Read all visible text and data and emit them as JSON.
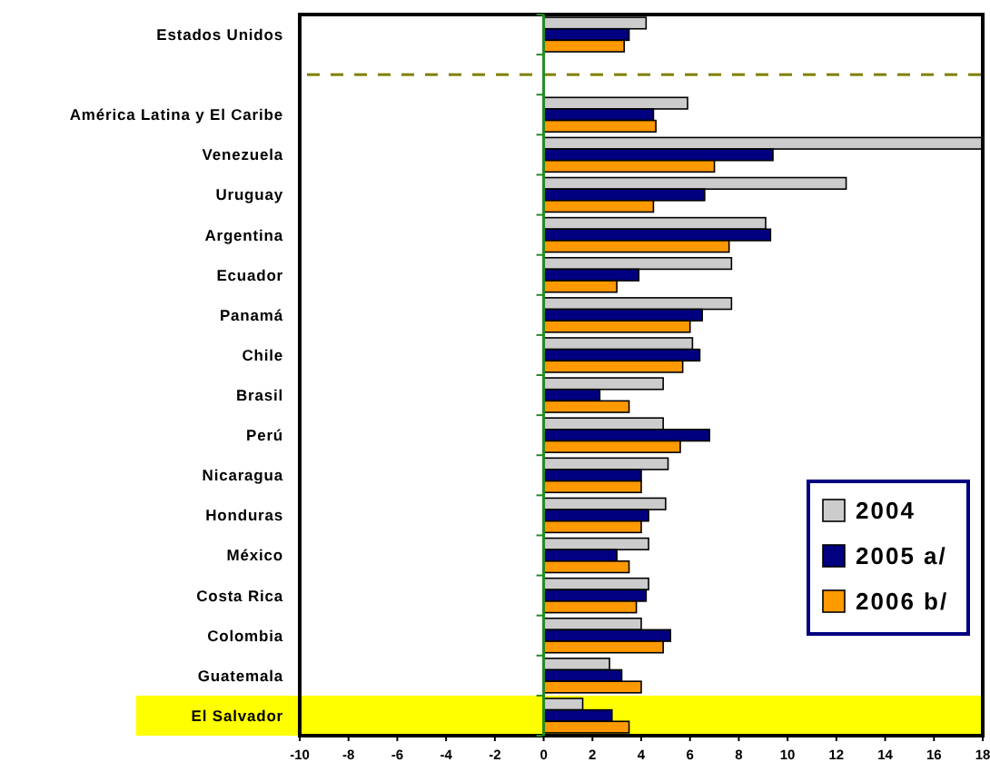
{
  "chart_data": {
    "type": "bar",
    "orientation": "horizontal",
    "categories": [
      "Estados Unidos",
      null,
      "América Latina y El Caribe",
      "Venezuela",
      "Uruguay",
      "Argentina",
      "Ecuador",
      "Panamá",
      "Chile",
      "Brasil",
      "Perú",
      "Nicaragua",
      "Honduras",
      "México",
      "Costa Rica",
      "Colombia",
      "Guatemala",
      "El Salvador"
    ],
    "series": [
      {
        "name": "2004",
        "color": "#cccccc",
        "values": [
          4.2,
          null,
          5.9,
          18.0,
          12.4,
          9.1,
          7.7,
          7.7,
          6.1,
          4.9,
          4.9,
          5.1,
          5.0,
          4.3,
          4.3,
          4.0,
          2.7,
          1.6
        ]
      },
      {
        "name": "2005 a/",
        "color": "#000080",
        "values": [
          3.5,
          null,
          4.5,
          9.4,
          6.6,
          9.3,
          3.9,
          6.5,
          6.4,
          2.3,
          6.8,
          4.0,
          4.3,
          3.0,
          4.2,
          5.2,
          3.2,
          2.8
        ]
      },
      {
        "name": "2006 b/",
        "color": "#ff9900",
        "values": [
          3.3,
          null,
          4.6,
          7.0,
          4.5,
          7.6,
          3.0,
          6.0,
          5.7,
          3.5,
          5.6,
          4.0,
          4.0,
          3.5,
          3.8,
          4.9,
          4.0,
          3.5
        ]
      }
    ],
    "xlim": [
      -10,
      18
    ],
    "xticks": [
      -10,
      -8,
      -6,
      -4,
      -2,
      0,
      2,
      4,
      6,
      8,
      10,
      12,
      14,
      16,
      18
    ],
    "ref_lines": [
      {
        "axis": "x",
        "value": 0,
        "color": "#228b22"
      }
    ],
    "grid": false,
    "legend": "bottom right"
  }
}
